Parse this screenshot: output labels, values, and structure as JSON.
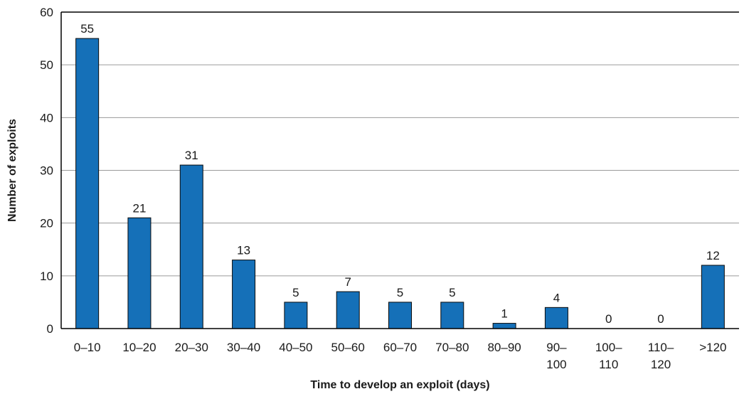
{
  "chart_data": {
    "type": "bar",
    "title": "",
    "xlabel": "Time to develop an exploit (days)",
    "ylabel": "Number of exploits",
    "categories": [
      [
        "0–10"
      ],
      [
        "10–20"
      ],
      [
        "20–30"
      ],
      [
        "30–40"
      ],
      [
        "40–50"
      ],
      [
        "50–60"
      ],
      [
        "60–70"
      ],
      [
        "70–80"
      ],
      [
        "80–90"
      ],
      [
        "90–",
        "100"
      ],
      [
        "100–",
        "110"
      ],
      [
        "110–",
        "120"
      ],
      [
        ">120"
      ]
    ],
    "values": [
      55,
      21,
      31,
      13,
      5,
      7,
      5,
      5,
      1,
      4,
      0,
      0,
      12
    ],
    "ylim": [
      0,
      60
    ],
    "yticks": [
      0,
      10,
      20,
      30,
      40,
      50,
      60
    ],
    "grid": true,
    "legend": "none",
    "colors": {
      "bar": "#1570b8",
      "bar_edge": "#0a0a0a",
      "grid": "#9a9a9a"
    }
  }
}
